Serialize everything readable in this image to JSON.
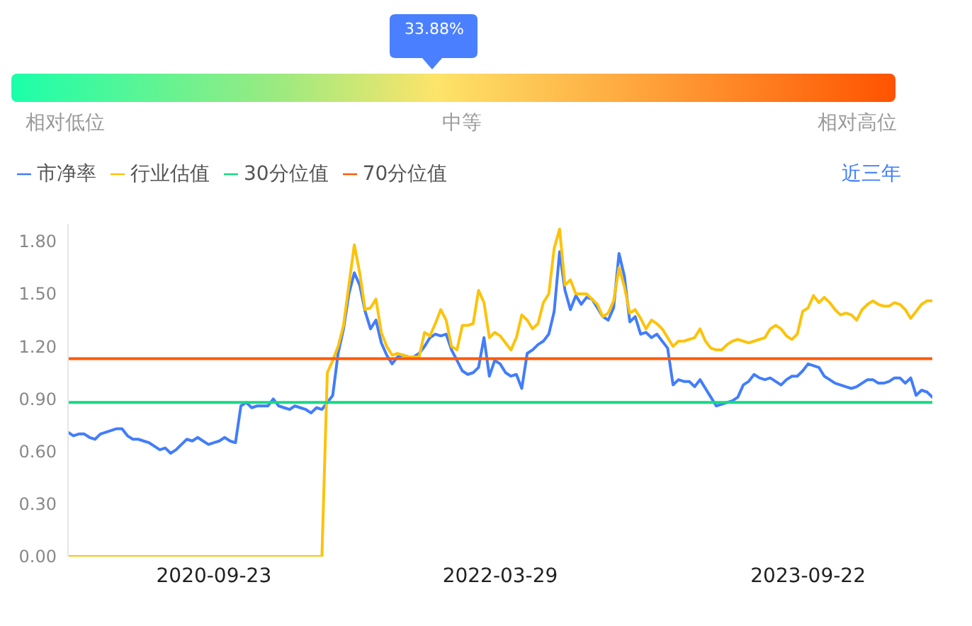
{
  "chart_data": {
    "type": "line",
    "annotations": [
      "33.88%",
      "相对低位",
      "中等",
      "相对高位",
      "近三年"
    ],
    "categories": [
      null,
      null,
      null,
      null,
      null,
      null,
      null,
      null,
      null,
      null,
      null,
      null,
      null,
      null,
      null,
      null,
      null,
      null,
      null,
      null,
      null,
      null,
      null,
      null,
      null,
      null,
      null,
      "2020-09-23",
      null,
      null,
      null,
      null,
      null,
      null,
      null,
      null,
      null,
      null,
      null,
      null,
      null,
      null,
      null,
      null,
      null,
      null,
      null,
      null,
      null,
      null,
      null,
      null,
      null,
      null,
      null,
      null,
      null,
      null,
      null,
      null,
      null,
      null,
      null,
      null,
      null,
      null,
      null,
      null,
      null,
      null,
      null,
      null,
      null,
      null,
      null,
      null,
      null,
      null,
      null,
      null,
      "2022-03-29",
      null,
      null,
      null,
      null,
      null,
      null,
      null,
      null,
      null,
      null,
      null,
      null,
      null,
      null,
      null,
      null,
      null,
      null,
      null,
      null,
      null,
      null,
      null,
      null,
      null,
      null,
      null,
      null,
      null,
      null,
      null,
      null,
      null,
      null,
      null,
      null,
      null,
      null,
      null,
      null,
      null,
      null,
      null,
      null,
      null,
      null,
      null,
      null,
      null,
      null,
      null,
      null,
      null,
      null,
      null,
      null,
      "2023-09-22",
      null,
      null,
      null,
      null,
      null,
      null,
      null,
      null,
      null,
      null,
      null,
      null,
      null,
      null,
      null,
      null,
      null,
      null,
      null,
      null,
      null,
      null,
      null
    ],
    "series": [
      {
        "name": "市净率",
        "color": "#427dfa",
        "values": [
          0.71,
          0.69,
          0.7,
          0.7,
          0.68,
          0.67,
          0.7,
          0.71,
          0.72,
          0.73,
          0.73,
          0.69,
          0.67,
          0.67,
          0.66,
          0.65,
          0.63,
          0.61,
          0.62,
          0.59,
          0.61,
          0.64,
          0.67,
          0.66,
          0.68,
          0.66,
          0.64,
          0.65,
          0.66,
          0.68,
          0.66,
          0.65,
          0.86,
          0.88,
          0.85,
          0.86,
          0.86,
          0.86,
          0.9,
          0.86,
          0.85,
          0.84,
          0.86,
          0.85,
          0.84,
          0.82,
          0.85,
          0.84,
          0.88,
          0.92,
          1.16,
          1.3,
          1.5,
          1.62,
          1.55,
          1.4,
          1.3,
          1.35,
          1.22,
          1.15,
          1.1,
          1.14,
          1.15,
          1.14,
          1.14,
          1.16,
          1.2,
          1.25,
          1.27,
          1.26,
          1.27,
          1.18,
          1.12,
          1.06,
          1.04,
          1.05,
          1.08,
          1.25,
          1.03,
          1.12,
          1.1,
          1.05,
          1.03,
          1.04,
          0.96,
          1.16,
          1.18,
          1.21,
          1.23,
          1.27,
          1.4,
          1.74,
          1.52,
          1.41,
          1.49,
          1.44,
          1.48,
          1.47,
          1.42,
          1.37,
          1.35,
          1.42,
          1.73,
          1.6,
          1.34,
          1.37,
          1.27,
          1.28,
          1.25,
          1.27,
          1.23,
          1.19,
          0.98,
          1.01,
          1.0,
          1.0,
          0.97,
          1.01,
          0.96,
          0.91,
          0.86,
          0.87,
          0.88,
          0.89,
          0.91,
          0.98,
          1.0,
          1.04,
          1.02,
          1.01,
          1.02,
          1.0,
          0.98,
          1.01,
          1.03,
          1.03,
          1.06,
          1.1,
          1.09,
          1.08,
          1.03,
          1.01,
          0.99,
          0.98,
          0.97,
          0.96,
          0.97,
          0.99,
          1.01,
          1.01,
          0.99,
          0.99,
          1.0,
          1.02,
          1.02,
          0.99,
          1.02,
          0.92,
          0.95,
          0.94,
          0.91
        ]
      },
      {
        "name": "行业估值",
        "color": "#fcc30c",
        "values": [
          0,
          0,
          0,
          0,
          0,
          0,
          0,
          0,
          0,
          0,
          0,
          0,
          0,
          0,
          0,
          0,
          0,
          0,
          0,
          0,
          0,
          0,
          0,
          0,
          0,
          0,
          0,
          0,
          0,
          0,
          0,
          0,
          0,
          0,
          0,
          0,
          0,
          0,
          0,
          0,
          0,
          0,
          0,
          0,
          0,
          0,
          0,
          0,
          1.05,
          1.12,
          1.2,
          1.32,
          1.55,
          1.78,
          1.62,
          1.41,
          1.42,
          1.47,
          1.28,
          1.2,
          1.15,
          1.16,
          1.15,
          1.14,
          1.14,
          1.14,
          1.28,
          1.26,
          1.33,
          1.41,
          1.35,
          1.2,
          1.18,
          1.32,
          1.32,
          1.33,
          1.52,
          1.45,
          1.25,
          1.28,
          1.26,
          1.22,
          1.18,
          1.25,
          1.38,
          1.35,
          1.3,
          1.33,
          1.45,
          1.5,
          1.76,
          1.87,
          1.55,
          1.58,
          1.5,
          1.5,
          1.5,
          1.47,
          1.44,
          1.37,
          1.39,
          1.46,
          1.65,
          1.54,
          1.39,
          1.41,
          1.36,
          1.3,
          1.35,
          1.33,
          1.3,
          1.25,
          1.2,
          1.23,
          1.23,
          1.24,
          1.25,
          1.3,
          1.23,
          1.19,
          1.18,
          1.18,
          1.21,
          1.23,
          1.24,
          1.23,
          1.22,
          1.23,
          1.24,
          1.25,
          1.3,
          1.32,
          1.3,
          1.26,
          1.24,
          1.27,
          1.4,
          1.42,
          1.49,
          1.45,
          1.48,
          1.45,
          1.41,
          1.38,
          1.39,
          1.38,
          1.35,
          1.41,
          1.44,
          1.46,
          1.44,
          1.43,
          1.43,
          1.45,
          1.44,
          1.41,
          1.36,
          1.4,
          1.44,
          1.46,
          1.46
        ]
      },
      {
        "name": "30分位值",
        "color": "#17d982",
        "values": [
          0.88,
          0.88,
          0.88,
          0.88,
          0.88,
          0.88,
          0.88,
          0.88,
          0.88,
          0.88,
          0.88,
          0.88,
          0.88,
          0.88,
          0.88,
          0.88,
          0.88,
          0.88,
          0.88,
          0.88,
          0.88,
          0.88,
          0.88,
          0.88,
          0.88,
          0.88,
          0.88,
          0.88,
          0.88,
          0.88,
          0.88,
          0.88,
          0.88,
          0.88,
          0.88,
          0.88,
          0.88,
          0.88,
          0.88,
          0.88,
          0.88,
          0.88,
          0.88,
          0.88,
          0.88,
          0.88,
          0.88,
          0.88,
          0.88,
          0.88,
          0.88,
          0.88,
          0.88,
          0.88,
          0.88,
          0.88,
          0.88,
          0.88,
          0.88,
          0.88,
          0.88,
          0.88,
          0.88,
          0.88,
          0.88,
          0.88,
          0.88,
          0.88,
          0.88,
          0.88,
          0.88,
          0.88,
          0.88,
          0.88,
          0.88,
          0.88,
          0.88,
          0.88,
          0.88,
          0.88,
          0.88,
          0.88,
          0.88,
          0.88,
          0.88,
          0.88,
          0.88,
          0.88,
          0.88,
          0.88,
          0.88,
          0.88,
          0.88,
          0.88,
          0.88,
          0.88,
          0.88,
          0.88,
          0.88,
          0.88,
          0.88,
          0.88,
          0.88,
          0.88,
          0.88,
          0.88,
          0.88,
          0.88,
          0.88,
          0.88,
          0.88,
          0.88,
          0.88,
          0.88,
          0.88,
          0.88,
          0.88,
          0.88,
          0.88,
          0.88,
          0.88,
          0.88,
          0.88,
          0.88,
          0.88,
          0.88,
          0.88,
          0.88,
          0.88,
          0.88,
          0.88,
          0.88,
          0.88,
          0.88,
          0.88,
          0.88,
          0.88,
          0.88,
          0.88,
          0.88,
          0.88,
          0.88,
          0.88,
          0.88,
          0.88,
          0.88,
          0.88,
          0.88,
          0.88,
          0.88,
          0.88,
          0.88,
          0.88,
          0.88,
          0.88,
          0.88,
          0.88,
          0.88,
          0.88,
          0.88,
          0.88
        ]
      },
      {
        "name": "70分位值",
        "color": "#fc5a07",
        "values": [
          1.13,
          1.13,
          1.13,
          1.13,
          1.13,
          1.13,
          1.13,
          1.13,
          1.13,
          1.13,
          1.13,
          1.13,
          1.13,
          1.13,
          1.13,
          1.13,
          1.13,
          1.13,
          1.13,
          1.13,
          1.13,
          1.13,
          1.13,
          1.13,
          1.13,
          1.13,
          1.13,
          1.13,
          1.13,
          1.13,
          1.13,
          1.13,
          1.13,
          1.13,
          1.13,
          1.13,
          1.13,
          1.13,
          1.13,
          1.13,
          1.13,
          1.13,
          1.13,
          1.13,
          1.13,
          1.13,
          1.13,
          1.13,
          1.13,
          1.13,
          1.13,
          1.13,
          1.13,
          1.13,
          1.13,
          1.13,
          1.13,
          1.13,
          1.13,
          1.13,
          1.13,
          1.13,
          1.13,
          1.13,
          1.13,
          1.13,
          1.13,
          1.13,
          1.13,
          1.13,
          1.13,
          1.13,
          1.13,
          1.13,
          1.13,
          1.13,
          1.13,
          1.13,
          1.13,
          1.13,
          1.13,
          1.13,
          1.13,
          1.13,
          1.13,
          1.13,
          1.13,
          1.13,
          1.13,
          1.13,
          1.13,
          1.13,
          1.13,
          1.13,
          1.13,
          1.13,
          1.13,
          1.13,
          1.13,
          1.13,
          1.13,
          1.13,
          1.13,
          1.13,
          1.13,
          1.13,
          1.13,
          1.13,
          1.13,
          1.13,
          1.13,
          1.13,
          1.13,
          1.13,
          1.13,
          1.13,
          1.13,
          1.13,
          1.13,
          1.13,
          1.13,
          1.13,
          1.13,
          1.13,
          1.13,
          1.13,
          1.13,
          1.13,
          1.13,
          1.13,
          1.13,
          1.13,
          1.13,
          1.13,
          1.13,
          1.13,
          1.13,
          1.13,
          1.13,
          1.13,
          1.13,
          1.13,
          1.13,
          1.13,
          1.13,
          1.13,
          1.13,
          1.13,
          1.13,
          1.13,
          1.13,
          1.13,
          1.13,
          1.13,
          1.13,
          1.13,
          1.13,
          1.13,
          1.13,
          1.13,
          1.13
        ]
      }
    ],
    "ylim": [
      0,
      1.9
    ],
    "yticks": [
      {
        "value": 0,
        "label": "0.00"
      },
      {
        "value": 0.3,
        "label": "0.30"
      },
      {
        "value": 0.6,
        "label": "0.60"
      },
      {
        "value": 0.9,
        "label": "0.90"
      },
      {
        "value": 1.2,
        "label": "1.20"
      },
      {
        "value": 1.5,
        "label": "1.50"
      },
      {
        "value": 1.8,
        "label": "1.80"
      }
    ],
    "legend": "top left",
    "marker": "none",
    "line_style": "solid"
  }
}
